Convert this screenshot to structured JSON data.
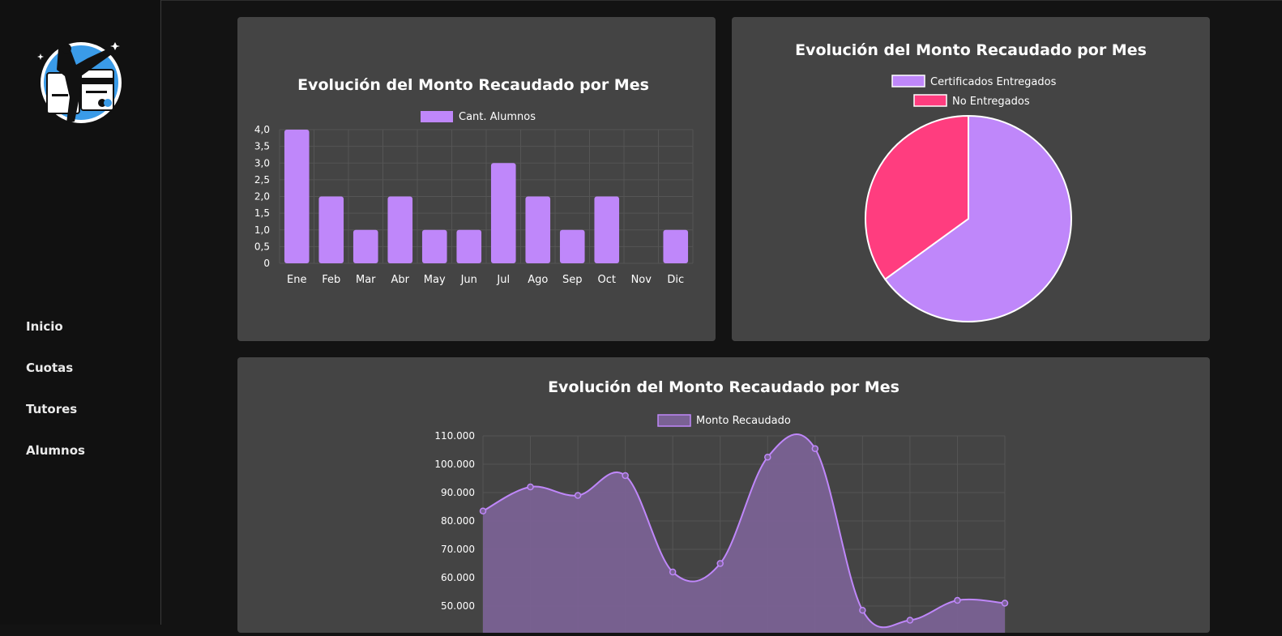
{
  "sidebar": {
    "items": [
      {
        "label": "Inicio"
      },
      {
        "label": "Cuotas"
      },
      {
        "label": "Tutores"
      },
      {
        "label": "Alumnos"
      }
    ]
  },
  "colors": {
    "bar": "#bf87fa",
    "pie_certificados": "#bf87fa",
    "pie_no_entregados": "#ff3d7f",
    "line": "#bf87fa",
    "line_fill": "#7a6294",
    "card_bg": "#444444",
    "page_bg": "#131313",
    "logo_blue": "#3a9be8"
  },
  "icons": [
    "logo-karate-card-icon"
  ],
  "chart_data": [
    {
      "type": "bar",
      "title": "Evolución del Monto Recaudado por Mes",
      "legend": "Cant. Alumnos",
      "legend_position": "top",
      "categories": [
        "Ene",
        "Feb",
        "Mar",
        "Abr",
        "May",
        "Jun",
        "Jul",
        "Ago",
        "Sep",
        "Oct",
        "Nov",
        "Dic"
      ],
      "values": [
        4,
        2,
        1,
        2,
        1,
        1,
        3,
        2,
        1,
        2,
        0,
        1
      ],
      "yticks": [
        "0",
        "0,5",
        "1,0",
        "1,5",
        "2,0",
        "2,5",
        "3,0",
        "3,5",
        "4,0"
      ],
      "ylim": [
        0,
        4
      ],
      "grid": true
    },
    {
      "type": "pie",
      "title": "Evolución del Monto Recaudado por Mes",
      "legend_position": "top",
      "labels": [
        "Certificados Entregados",
        "No Entregados"
      ],
      "values": [
        65,
        35
      ]
    },
    {
      "type": "area",
      "title": "Evolución del Monto Recaudado por Mes",
      "legend": "Monto Recaudado",
      "legend_position": "top",
      "values": [
        83500,
        92000,
        89000,
        96000,
        62000,
        65000,
        102500,
        105500,
        48500,
        45000,
        52000,
        51000
      ],
      "yticks": [
        "50.000",
        "60.000",
        "70.000",
        "80.000",
        "90.000",
        "100.000",
        "110.000"
      ],
      "ylim": [
        40000,
        110000
      ],
      "grid": true
    }
  ]
}
